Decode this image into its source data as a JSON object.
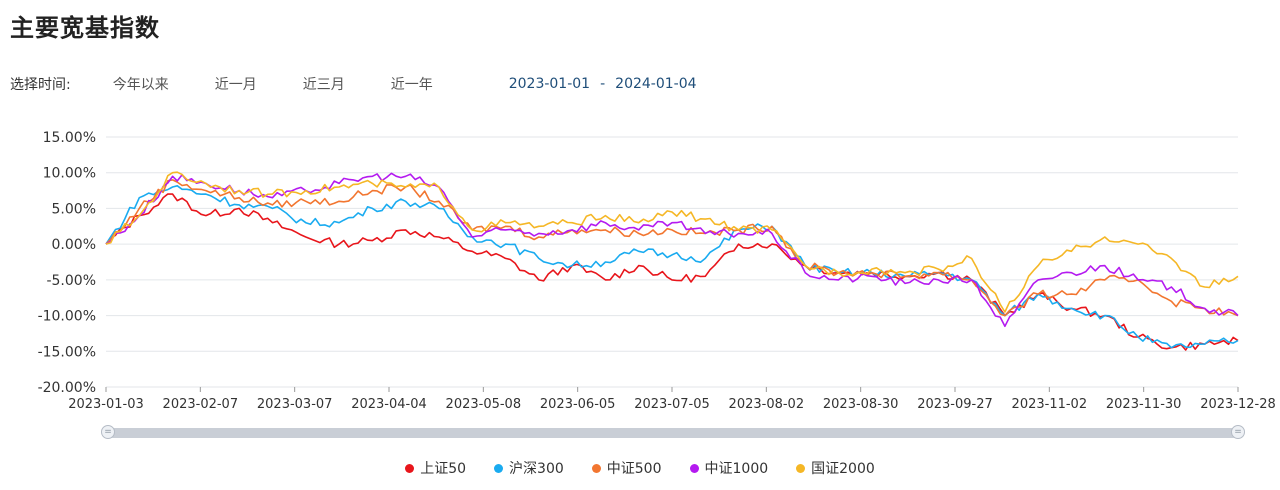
{
  "page": {
    "title": "主要宽基指数"
  },
  "time_filter": {
    "label": "选择时间:",
    "options": [
      "今年以来",
      "近一月",
      "近三月",
      "近一年"
    ],
    "start_date": "2023-01-01",
    "separator": "-",
    "end_date": "2024-01-04"
  },
  "chart_data": {
    "type": "line",
    "title": "",
    "xlabel": "",
    "ylabel": "",
    "ylim": [
      -20,
      15
    ],
    "yticks": [
      15,
      10,
      5,
      0,
      -5,
      -10,
      -15,
      -20
    ],
    "ytick_labels": [
      "15.00%",
      "10.00%",
      "5.00%",
      "0.00%",
      "-5.00%",
      "-10.00%",
      "-15.00%",
      "-20.00%"
    ],
    "x_tick_labels": [
      "2023-01-03",
      "2023-02-07",
      "2023-03-07",
      "2023-04-04",
      "2023-05-08",
      "2023-06-05",
      "2023-07-05",
      "2023-08-02",
      "2023-08-30",
      "2023-09-27",
      "2023-11-02",
      "2023-11-30",
      "2023-12-28"
    ],
    "series": [
      {
        "name": "上证50",
        "color": "#e8151b",
        "values": [
          0,
          4,
          7,
          4,
          5,
          3,
          1,
          0,
          0.5,
          2,
          1,
          -1,
          -2,
          -5,
          -3,
          -5,
          -3,
          -5,
          -4.5,
          0,
          0,
          -3,
          -4,
          -4,
          -4.5,
          -4,
          -5,
          -10,
          -7,
          -9,
          -10,
          -13,
          -14.5,
          -14,
          -13.5
        ]
      },
      {
        "name": "沪深300",
        "color": "#1aabf0",
        "values": [
          0,
          6.5,
          8,
          7,
          5.5,
          5,
          3,
          3,
          5,
          6,
          5,
          1,
          0,
          -2,
          -3,
          -2.5,
          -1,
          -1.5,
          -2,
          2,
          2.5,
          -3,
          -4,
          -4,
          -4.5,
          -4,
          -5,
          -10,
          -7,
          -9,
          -10,
          -13,
          -14.5,
          -14,
          -13.5
        ]
      },
      {
        "name": "中证500",
        "color": "#f27630",
        "values": [
          0,
          5,
          9,
          7.5,
          6.5,
          5.5,
          6,
          6,
          7.5,
          8,
          6,
          2,
          2.5,
          1,
          2,
          2,
          1.5,
          2,
          1.5,
          2,
          2.5,
          -3,
          -4,
          -4,
          -4.5,
          -4,
          -5,
          -10,
          -7,
          -7,
          -5,
          -5,
          -8,
          -9,
          -10
        ]
      },
      {
        "name": "中证1000",
        "color": "#b41af0",
        "values": [
          0,
          4,
          9.5,
          8.5,
          7.5,
          6.5,
          7.5,
          8.5,
          9.5,
          9.5,
          8,
          1,
          2,
          1.5,
          2,
          3,
          2,
          3,
          1.5,
          1.5,
          1.5,
          -4,
          -5,
          -4.5,
          -5.5,
          -5,
          -5,
          -11.5,
          -5,
          -4,
          -3,
          -5,
          -6,
          -9,
          -10
        ]
      },
      {
        "name": "国证2000",
        "color": "#f5b726",
        "values": [
          0,
          4,
          10,
          8.5,
          7.5,
          7,
          7.5,
          8,
          8.5,
          8,
          8,
          2,
          3,
          2.5,
          3,
          4,
          3,
          4.5,
          3.5,
          2,
          2,
          -3,
          -4,
          -3.5,
          -4,
          -3.5,
          -2,
          -9.5,
          -3,
          -1,
          1,
          0,
          -2,
          -6,
          -4.5
        ]
      }
    ]
  }
}
